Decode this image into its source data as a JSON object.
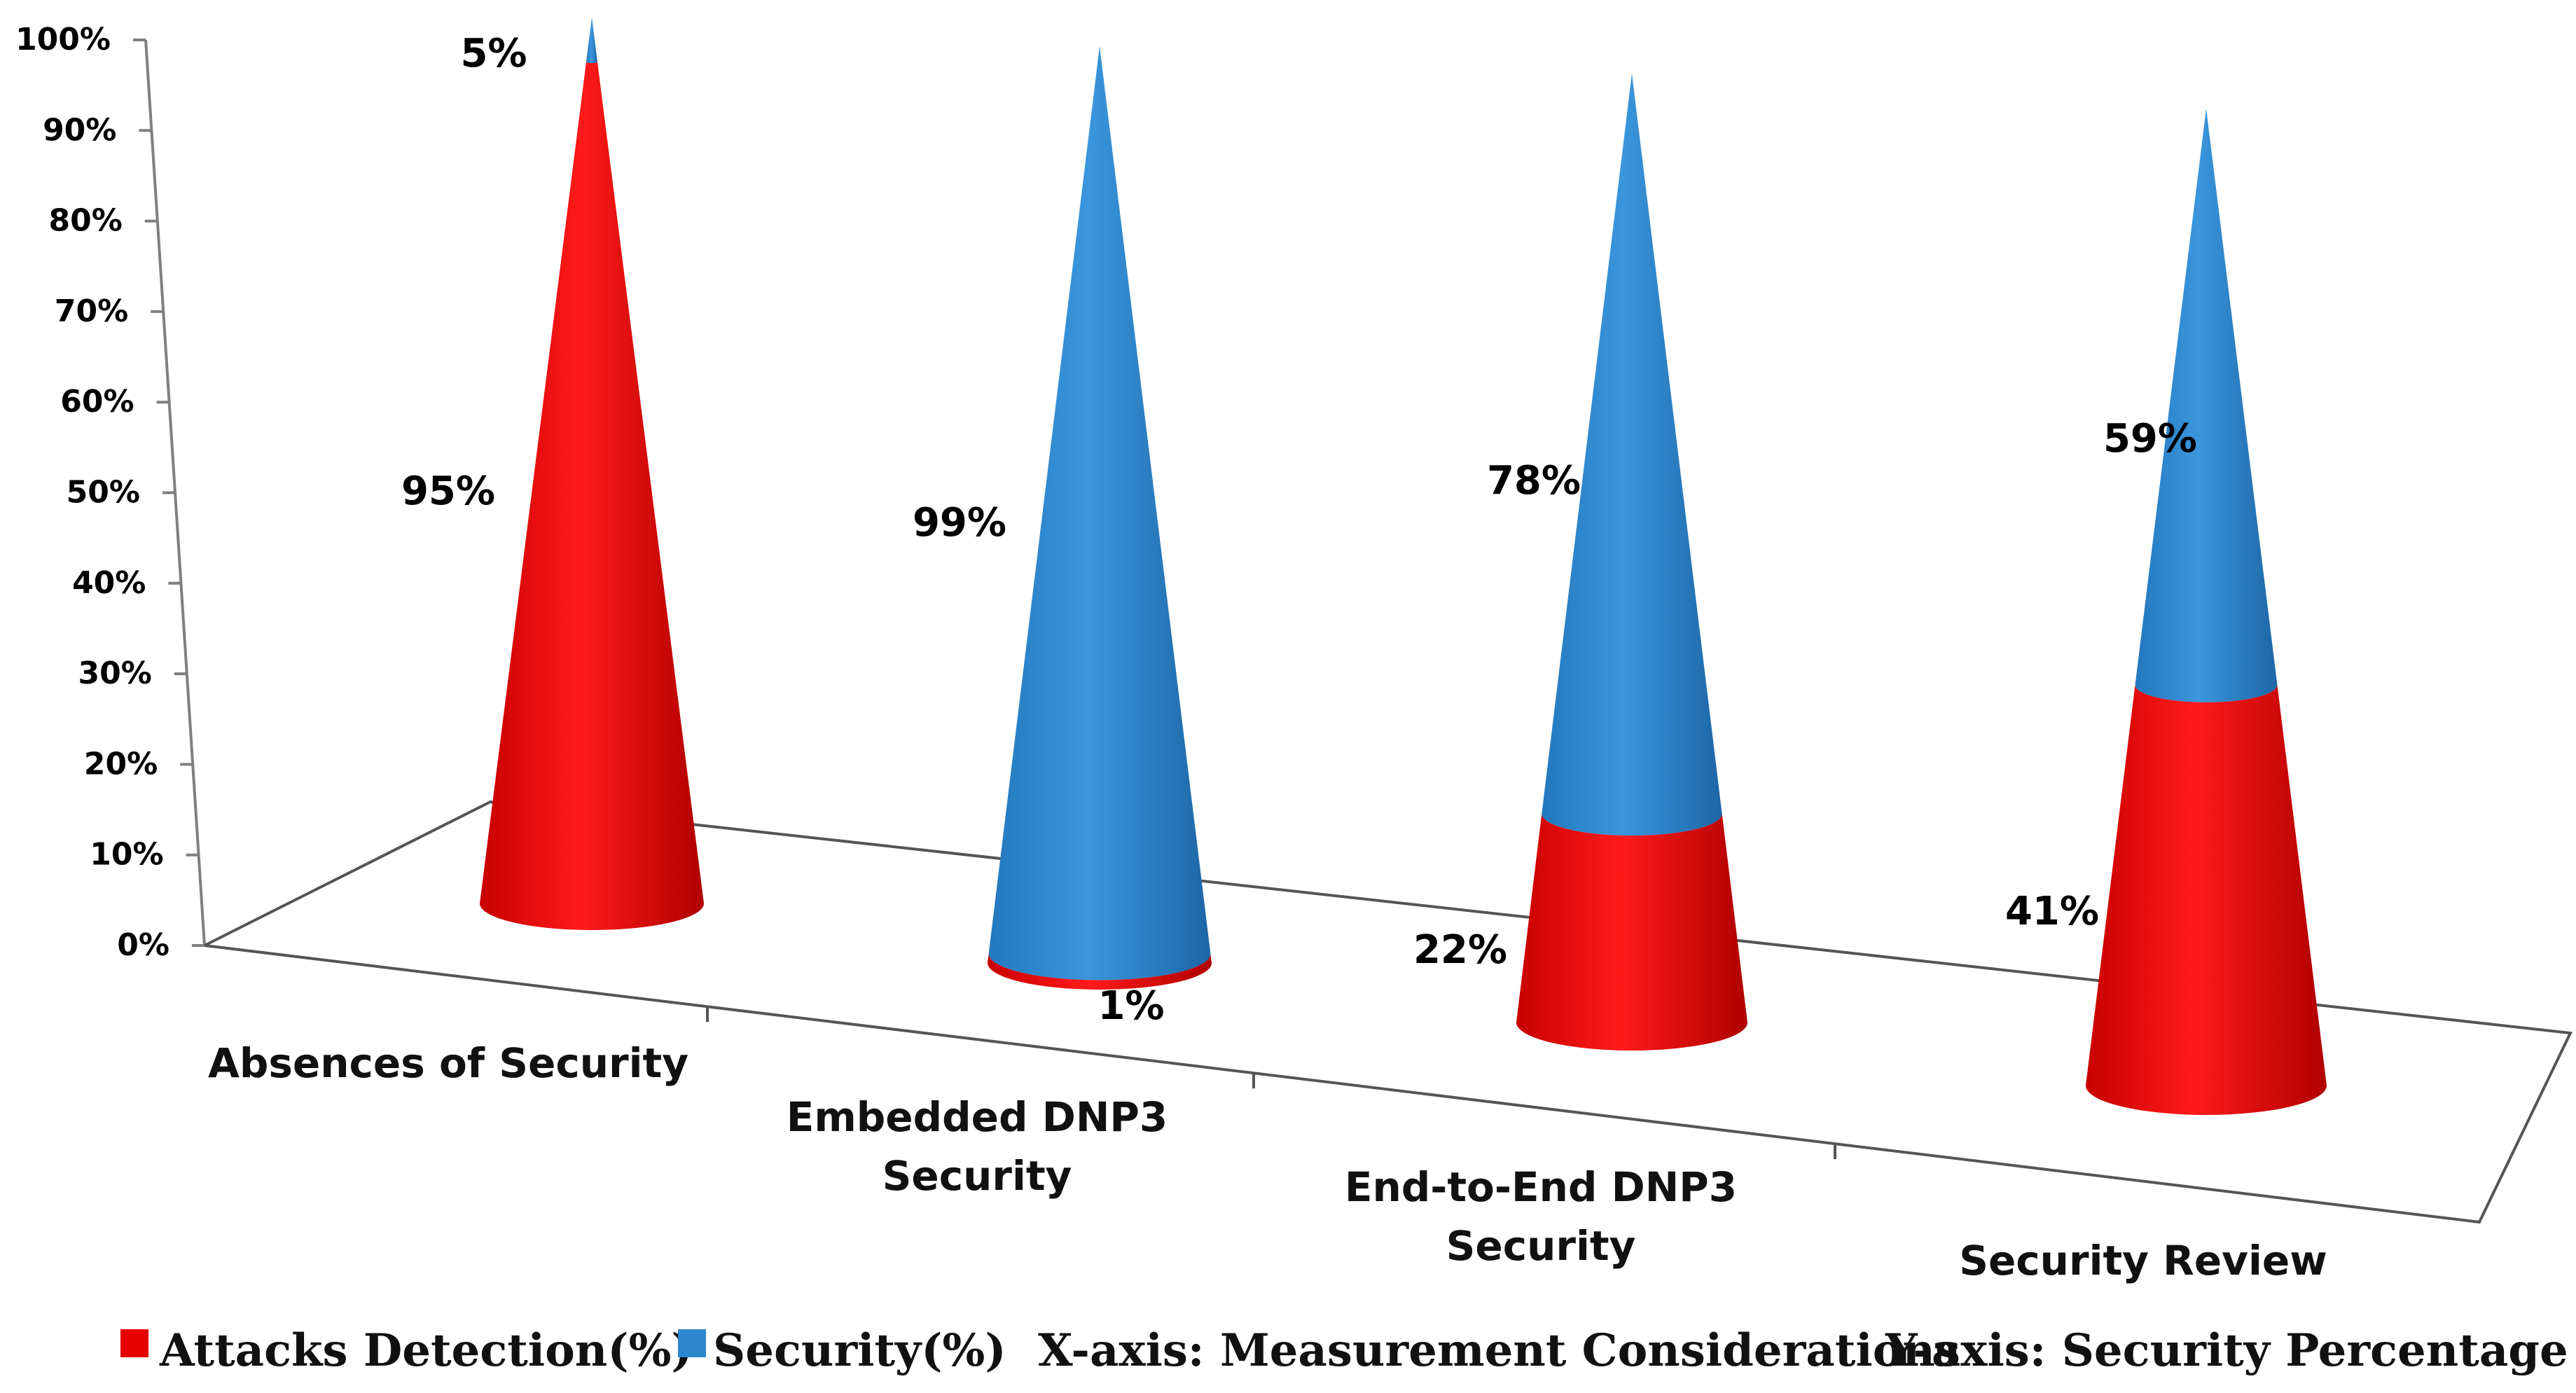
{
  "chart_data": {
    "type": "bar",
    "style": "3d-cone-stacked",
    "title": "",
    "xlabel": "X-axis: Measurement Considerations",
    "ylabel": "Y-axis: Security Percentage",
    "ylim": [
      0,
      100
    ],
    "y_ticks": [
      "0%",
      "10%",
      "20%",
      "30%",
      "40%",
      "50%",
      "60%",
      "70%",
      "80%",
      "90%",
      "100%"
    ],
    "categories": [
      [
        "Absences of Security"
      ],
      [
        "Embedded DNP3",
        "Security"
      ],
      [
        "End-to-End DNP3",
        "Security"
      ],
      [
        "Security Review"
      ]
    ],
    "series": [
      {
        "name": "Attacks Detection(%)",
        "color": "#e60000",
        "values": [
          95,
          1,
          22,
          41
        ],
        "labels": [
          "95%",
          "1%",
          "22%",
          "41%"
        ]
      },
      {
        "name": "Security(%)",
        "color": "#2b86cc",
        "values": [
          5,
          99,
          78,
          59
        ],
        "labels": [
          "5%",
          "99%",
          "78%",
          "59%"
        ]
      }
    ],
    "legend": {
      "placement": "bottom",
      "entries": [
        "Attacks Detection(%)",
        "Security(%)"
      ],
      "extra_text": [
        "X-axis: Measurement Considerations",
        "Y-axis: Security Percentage"
      ]
    },
    "grid": false
  }
}
